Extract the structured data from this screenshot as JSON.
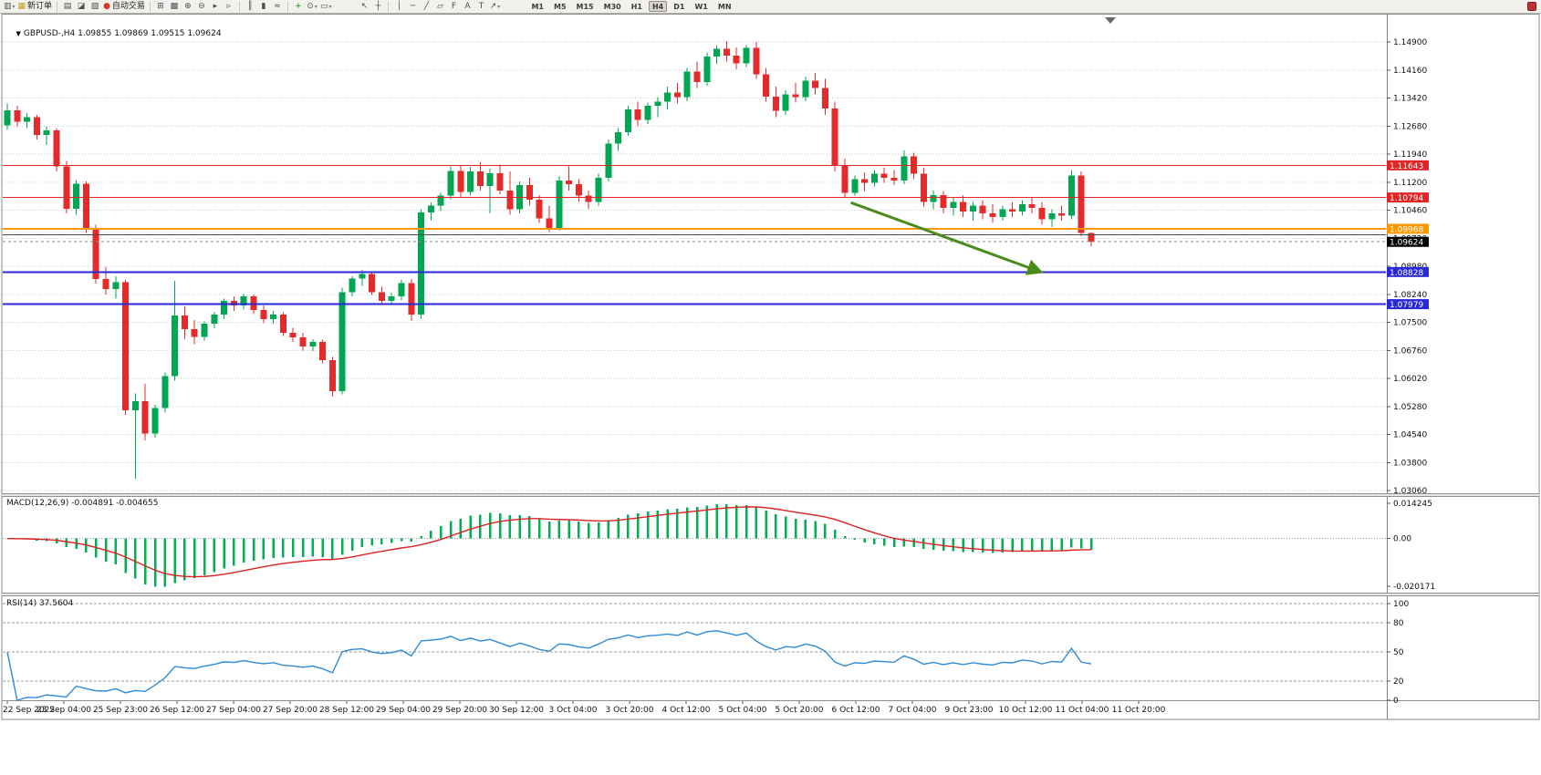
{
  "toolbar": {
    "items": [
      {
        "name": "new-chart",
        "glyph": "▥",
        "dropdown": true
      },
      {
        "name": "new-order",
        "glyph": "▦",
        "label": "新订单",
        "glyph_color": "#c29a1e"
      },
      {
        "sep": true
      },
      {
        "name": "market-watch",
        "glyph": "▤"
      },
      {
        "name": "data-window",
        "glyph": "◪"
      },
      {
        "name": "navigator",
        "glyph": "▧"
      },
      {
        "name": "autotrading",
        "glyph": "●",
        "label": "自动交易",
        "glyph_color": "#d23a2a"
      },
      {
        "sep": true
      },
      {
        "name": "tile-windows",
        "glyph": "⊞"
      },
      {
        "name": "cascade-windows",
        "glyph": "▩"
      },
      {
        "name": "zoom-in",
        "glyph": "⊕"
      },
      {
        "name": "zoom-out",
        "glyph": "⊖"
      },
      {
        "name": "auto-scroll",
        "glyph": "▸"
      },
      {
        "name": "chart-shift",
        "glyph": "▹"
      },
      {
        "sep": true
      },
      {
        "name": "bar-chart",
        "glyph": "║"
      },
      {
        "name": "candlestick-chart",
        "glyph": "▮"
      },
      {
        "name": "line-chart",
        "glyph": "≈"
      },
      {
        "sep": true
      },
      {
        "name": "indicators",
        "glyph": "+",
        "glyph_color": "#1c8a1c"
      },
      {
        "name": "periods",
        "glyph": "⊙",
        "dropdown": true
      },
      {
        "name": "templates",
        "glyph": "▭",
        "dropdown": true
      },
      {
        "gap": true
      },
      {
        "name": "cursor",
        "glyph": "↖"
      },
      {
        "name": "crosshair",
        "glyph": "┼"
      },
      {
        "sep": true
      },
      {
        "name": "vertical-line",
        "glyph": "│"
      },
      {
        "name": "horizontal-line",
        "glyph": "─"
      },
      {
        "name": "trendline",
        "glyph": "╱"
      },
      {
        "name": "equidistant-channel",
        "glyph": "▱"
      },
      {
        "name": "fibonacci",
        "glyph": "F"
      },
      {
        "name": "text",
        "glyph": "A"
      },
      {
        "name": "text-label",
        "glyph": "T"
      },
      {
        "name": "arrows",
        "glyph": "↗",
        "dropdown": true
      },
      {
        "gap": true
      }
    ],
    "timeframes": [
      {
        "label": "M1"
      },
      {
        "label": "M5"
      },
      {
        "label": "M15"
      },
      {
        "label": "M30"
      },
      {
        "label": "H1"
      },
      {
        "label": "H4",
        "active": true
      },
      {
        "label": "D1"
      },
      {
        "label": "W1"
      },
      {
        "label": "MN"
      }
    ]
  },
  "chart": {
    "collapse_glyph": "▼",
    "symbol_period": "GBPUSD-,H4",
    "open": "1.09855",
    "high": "1.09869",
    "low": "1.09515",
    "close": "1.09624",
    "title": "GBPUSD-,H4 1.09855 1.09869 1.09515 1.09624",
    "macd_label": "MACD(12,26,9) -0.004891 -0.004655",
    "rsi_label": "RSI(14) 37.5604"
  },
  "chart_data": {
    "type": "candlestick",
    "symbol": "GBPUSD-",
    "timeframe": "H4",
    "colors": {
      "bull": "#00a651",
      "bear": "#e42a2a",
      "grid": "#c9c9c9",
      "macd_hist": "#00b050",
      "macd_signal": "#dd2222",
      "rsi_line": "#2f8bd6",
      "arrow": "#4a8c1c"
    },
    "y_axis": {
      "top_value": 1.149,
      "step": 0.0074
    },
    "y_axis_labels": [
      "1.14900",
      "1.14160",
      "1.13420",
      "1.12680",
      "1.11940",
      "1.11200",
      "1.10460",
      "1.09720",
      "1.08980",
      "1.08240",
      "1.07500",
      "1.06760",
      "1.06020",
      "1.05280",
      "1.04540",
      "1.03800",
      "1.03060"
    ],
    "x_labels": [
      "22 Sep 2022",
      "23 Sep 04:00",
      "25 Sep 23:00",
      "26 Sep 12:00",
      "27 Sep 04:00",
      "27 Sep 20:00",
      "28 Sep 12:00",
      "29 Sep 04:00",
      "29 Sep 20:00",
      "30 Sep 12:00",
      "3 Oct 04:00",
      "3 Oct 20:00",
      "4 Oct 12:00",
      "5 Oct 04:00",
      "5 Oct 20:00",
      "6 Oct 12:00",
      "7 Oct 04:00",
      "9 Oct 23:00",
      "10 Oct 12:00",
      "11 Oct 04:00",
      "11 Oct 20:00"
    ],
    "hlines": [
      {
        "price": 1.11643,
        "label": "1.11643",
        "color": "#e32424",
        "width": 1
      },
      {
        "price": 1.10794,
        "label": "1.10794",
        "color": "#e32424",
        "width": 1
      },
      {
        "price": 1.09968,
        "label": "1.09968",
        "color": "#ff9800",
        "width": 2
      },
      {
        "price": 1.0981,
        "label": "",
        "color": "#4a4a4a",
        "width": 1
      },
      {
        "price": 1.08828,
        "label": "1.08828",
        "color": "#2828d8",
        "width": 2
      },
      {
        "price": 1.07979,
        "label": "1.07979",
        "color": "#2828d8",
        "width": 2
      }
    ],
    "current_price": {
      "value": 1.09624,
      "label": "1.09624"
    },
    "arrow": {
      "from": {
        "bar": 85.6,
        "price": 1.1066
      },
      "to": {
        "bar": 104.8,
        "price": 1.08836
      }
    },
    "candles": [
      [
        1.127,
        1.1328,
        1.1258,
        1.131
      ],
      [
        1.131,
        1.1322,
        1.1268,
        1.128
      ],
      [
        1.128,
        1.1302,
        1.1262,
        1.1292
      ],
      [
        1.1292,
        1.1298,
        1.1232,
        1.1244
      ],
      [
        1.1244,
        1.1266,
        1.1218,
        1.1256
      ],
      [
        1.1256,
        1.1262,
        1.1148,
        1.1162
      ],
      [
        1.1162,
        1.1176,
        1.1038,
        1.105
      ],
      [
        1.105,
        1.1126,
        1.1034,
        1.1116
      ],
      [
        1.1116,
        1.1122,
        1.0986,
        1.0998
      ],
      [
        1.0998,
        1.1008,
        1.0852,
        1.0864
      ],
      [
        1.0864,
        1.0896,
        1.0824,
        1.0838
      ],
      [
        1.0838,
        1.0872,
        1.0812,
        1.0856
      ],
      [
        1.0856,
        1.0862,
        1.0506,
        1.0518
      ],
      [
        1.0518,
        1.0562,
        1.0337,
        1.0542
      ],
      [
        1.0542,
        1.0588,
        1.0438,
        1.0456
      ],
      [
        1.0456,
        1.0532,
        1.0446,
        1.0524
      ],
      [
        1.0524,
        1.0618,
        1.0512,
        1.0608
      ],
      [
        1.0608,
        1.086,
        1.0596,
        1.0768
      ],
      [
        1.0768,
        1.0792,
        1.0706,
        1.0732
      ],
      [
        1.0732,
        1.0756,
        1.0692,
        1.0712
      ],
      [
        1.0712,
        1.0752,
        1.0702,
        1.0746
      ],
      [
        1.0746,
        1.0778,
        1.0734,
        1.077
      ],
      [
        1.077,
        1.0812,
        1.0758,
        1.0806
      ],
      [
        1.0806,
        1.0818,
        1.078,
        1.0794
      ],
      [
        1.0794,
        1.0826,
        1.0784,
        1.0818
      ],
      [
        1.0818,
        1.0824,
        1.0772,
        1.0782
      ],
      [
        1.0782,
        1.0794,
        1.0748,
        1.0758
      ],
      [
        1.0758,
        1.078,
        1.0746,
        1.077
      ],
      [
        1.077,
        1.0776,
        1.0714,
        1.0722
      ],
      [
        1.0722,
        1.0736,
        1.0698,
        1.071
      ],
      [
        1.071,
        1.0722,
        1.0676,
        1.0686
      ],
      [
        1.0686,
        1.0706,
        1.0674,
        1.0698
      ],
      [
        1.0698,
        1.0704,
        1.0642,
        1.065
      ],
      [
        1.065,
        1.0658,
        1.0554,
        1.0568
      ],
      [
        1.0568,
        1.0842,
        1.056,
        1.083
      ],
      [
        1.083,
        1.0872,
        1.0818,
        1.0866
      ],
      [
        1.0866,
        1.0888,
        1.0846,
        1.0878
      ],
      [
        1.0878,
        1.0884,
        1.0822,
        1.083
      ],
      [
        1.083,
        1.0844,
        1.0796,
        1.0806
      ],
      [
        1.0806,
        1.0828,
        1.0798,
        1.0818
      ],
      [
        1.0818,
        1.0862,
        1.0808,
        1.0854
      ],
      [
        1.0854,
        1.0864,
        1.0754,
        1.077
      ],
      [
        1.077,
        1.1048,
        1.076,
        1.104
      ],
      [
        1.104,
        1.1066,
        1.1018,
        1.1058
      ],
      [
        1.1058,
        1.1092,
        1.1044,
        1.1084
      ],
      [
        1.1084,
        1.1162,
        1.1074,
        1.115
      ],
      [
        1.115,
        1.1164,
        1.1078,
        1.1094
      ],
      [
        1.1094,
        1.116,
        1.1084,
        1.1148
      ],
      [
        1.1148,
        1.1172,
        1.1098,
        1.111
      ],
      [
        1.111,
        1.1156,
        1.1038,
        1.1144
      ],
      [
        1.1144,
        1.1166,
        1.1088,
        1.1098
      ],
      [
        1.1098,
        1.1148,
        1.1034,
        1.1048
      ],
      [
        1.1048,
        1.1122,
        1.1038,
        1.1112
      ],
      [
        1.1112,
        1.1132,
        1.1058,
        1.1074
      ],
      [
        1.1074,
        1.1086,
        1.1012,
        1.1024
      ],
      [
        1.1024,
        1.1058,
        1.0988,
        1.0998
      ],
      [
        1.0998,
        1.1136,
        1.0992,
        1.1124
      ],
      [
        1.1124,
        1.1162,
        1.1098,
        1.1114
      ],
      [
        1.1114,
        1.1128,
        1.1068,
        1.1084
      ],
      [
        1.1084,
        1.1098,
        1.1048,
        1.1068
      ],
      [
        1.1068,
        1.1142,
        1.1058,
        1.1132
      ],
      [
        1.1132,
        1.1232,
        1.1122,
        1.1222
      ],
      [
        1.1222,
        1.1262,
        1.1202,
        1.1252
      ],
      [
        1.1252,
        1.1322,
        1.1242,
        1.1312
      ],
      [
        1.1312,
        1.1332,
        1.1268,
        1.1284
      ],
      [
        1.1284,
        1.133,
        1.1274,
        1.1322
      ],
      [
        1.1322,
        1.1344,
        1.1292,
        1.1332
      ],
      [
        1.1332,
        1.1372,
        1.1312,
        1.1356
      ],
      [
        1.1356,
        1.1382,
        1.1328,
        1.1344
      ],
      [
        1.1344,
        1.1422,
        1.1334,
        1.1412
      ],
      [
        1.1412,
        1.1438,
        1.1368,
        1.1384
      ],
      [
        1.1384,
        1.1462,
        1.1374,
        1.1452
      ],
      [
        1.1452,
        1.1482,
        1.1432,
        1.1472
      ],
      [
        1.1472,
        1.1492,
        1.1438,
        1.1454
      ],
      [
        1.1454,
        1.1476,
        1.1418,
        1.1434
      ],
      [
        1.1434,
        1.1482,
        1.1424,
        1.1474
      ],
      [
        1.1474,
        1.149,
        1.1392,
        1.1404
      ],
      [
        1.1404,
        1.1422,
        1.1332,
        1.1346
      ],
      [
        1.1346,
        1.1372,
        1.1292,
        1.1308
      ],
      [
        1.1308,
        1.1362,
        1.1298,
        1.1352
      ],
      [
        1.1352,
        1.1382,
        1.133,
        1.1344
      ],
      [
        1.1344,
        1.1398,
        1.1334,
        1.1388
      ],
      [
        1.1388,
        1.1408,
        1.1352,
        1.1368
      ],
      [
        1.1368,
        1.1392,
        1.1298,
        1.1314
      ],
      [
        1.1314,
        1.1332,
        1.1148,
        1.1164
      ],
      [
        1.1164,
        1.1182,
        1.1078,
        1.1092
      ],
      [
        1.1092,
        1.1138,
        1.1084,
        1.1128
      ],
      [
        1.1128,
        1.1146,
        1.1096,
        1.1118
      ],
      [
        1.1118,
        1.1152,
        1.1108,
        1.1142
      ],
      [
        1.1142,
        1.1158,
        1.1118,
        1.1132
      ],
      [
        1.1132,
        1.1152,
        1.1112,
        1.1124
      ],
      [
        1.1124,
        1.1204,
        1.1114,
        1.1188
      ],
      [
        1.1188,
        1.1198,
        1.1128,
        1.1142
      ],
      [
        1.1142,
        1.1158,
        1.1054,
        1.1068
      ],
      [
        1.1068,
        1.1098,
        1.1048,
        1.1086
      ],
      [
        1.1086,
        1.1096,
        1.1038,
        1.1052
      ],
      [
        1.1052,
        1.1078,
        1.1032,
        1.1068
      ],
      [
        1.1068,
        1.1084,
        1.1028,
        1.1042
      ],
      [
        1.1042,
        1.1068,
        1.1018,
        1.1058
      ],
      [
        1.1058,
        1.1072,
        1.1022,
        1.1038
      ],
      [
        1.1038,
        1.1062,
        1.1012,
        1.1028
      ],
      [
        1.1028,
        1.1058,
        1.1018,
        1.1048
      ],
      [
        1.1048,
        1.1068,
        1.1028,
        1.1042
      ],
      [
        1.1042,
        1.1072,
        1.1032,
        1.1062
      ],
      [
        1.1062,
        1.1078,
        1.1038,
        1.1052
      ],
      [
        1.1052,
        1.1068,
        1.1008,
        1.1022
      ],
      [
        1.1022,
        1.1048,
        1.1002,
        1.1038
      ],
      [
        1.1038,
        1.1058,
        1.1018,
        1.1032
      ],
      [
        1.1032,
        1.1152,
        1.1022,
        1.1138
      ],
      [
        1.1138,
        1.1148,
        1.0978,
        1.09855
      ],
      [
        1.09855,
        1.09869,
        1.09515,
        1.09624
      ]
    ],
    "indicators": {
      "macd": {
        "label": "MACD(12,26,9)",
        "values_text": "-0.004891 -0.004655",
        "params": [
          12,
          26,
          9
        ],
        "axis_labels": [
          "0.014245",
          "0.00",
          "-0.020171"
        ],
        "axis_values": [
          0.014245,
          0,
          -0.020171
        ]
      },
      "rsi": {
        "label": "RSI(14)",
        "value_text": "37.5604",
        "period": 14,
        "levels": [
          100,
          80,
          50,
          20
        ],
        "axis_labels": [
          "100",
          "80",
          "50",
          "20",
          "0"
        ],
        "axis_values": [
          100,
          80,
          50,
          20,
          0
        ]
      }
    }
  }
}
